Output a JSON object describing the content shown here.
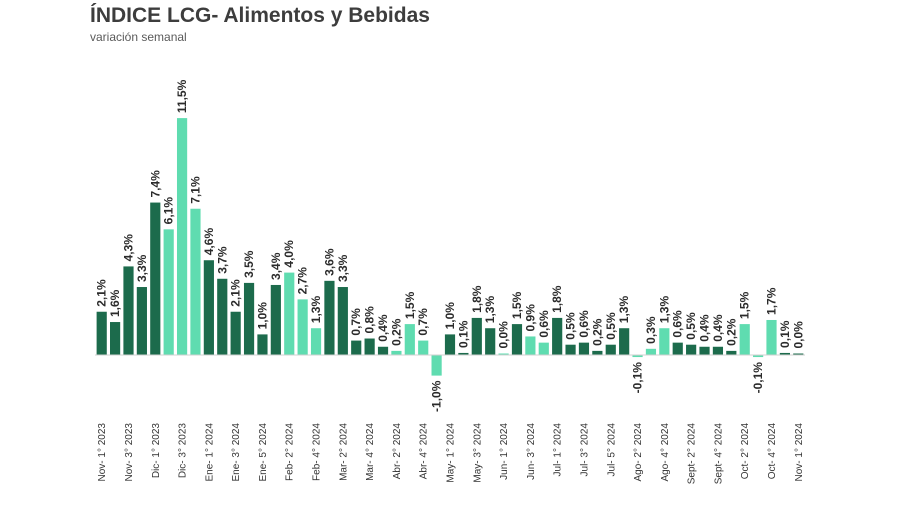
{
  "title": "ÍNDICE LCG- Alimentos y Bebidas",
  "subtitle": "variación semanal",
  "chart_data": {
    "type": "bar",
    "title": "ÍNDICE LCG- Alimentos y Bebidas",
    "subtitle": "variación semanal",
    "xlabel": "",
    "ylabel": "",
    "unit": "%",
    "ylim": [
      -1.0,
      11.5
    ],
    "grid": false,
    "legend": "none",
    "colors": {
      "dark": "#1c6b4c",
      "light": "#5fdcb0"
    },
    "values": [
      2.1,
      1.6,
      4.3,
      3.3,
      7.4,
      6.1,
      11.5,
      7.1,
      4.6,
      3.7,
      2.1,
      3.5,
      1.0,
      3.4,
      4.0,
      2.7,
      1.3,
      3.6,
      3.3,
      0.7,
      0.8,
      0.4,
      0.2,
      1.5,
      0.7,
      -1.0,
      1.0,
      0.1,
      1.8,
      1.3,
      0.0,
      1.5,
      0.9,
      0.6,
      1.8,
      0.5,
      0.6,
      0.2,
      0.5,
      1.3,
      -0.1,
      0.3,
      1.3,
      0.6,
      0.5,
      0.4,
      0.4,
      0.2,
      1.5,
      -0.1,
      1.7,
      0.1,
      0.0
    ],
    "labels": [
      "2,1%",
      "1,6%",
      "4,3%",
      "3,3%",
      "7,4%",
      "6,1%",
      "11,5%",
      "7,1%",
      "4,6%",
      "3,7%",
      "2,1%",
      "3,5%",
      "1,0%",
      "3,4%",
      "4,0%",
      "2,7%",
      "1,3%",
      "3,6%",
      "3,3%",
      "0,7%",
      "0,8%",
      "0,4%",
      "0,2%",
      "1,5%",
      "0,7%",
      "-1,0%",
      "1,0%",
      "0,1%",
      "1,8%",
      "1,3%",
      "0,0%",
      "1,5%",
      "0,9%",
      "0,6%",
      "1,8%",
      "0,5%",
      "0,6%",
      "0,2%",
      "0,5%",
      "1,3%",
      "-0,1%",
      "0,3%",
      "1,3%",
      "0,6%",
      "0,5%",
      "0,4%",
      "0,4%",
      "0,2%",
      "1,5%",
      "-0,1%",
      "1,7%",
      "0,1%",
      "0,0%"
    ],
    "shade": [
      "dark",
      "dark",
      "dark",
      "dark",
      "dark",
      "light",
      "light",
      "light",
      "dark",
      "dark",
      "dark",
      "dark",
      "dark",
      "dark",
      "light",
      "light",
      "light",
      "dark",
      "dark",
      "dark",
      "dark",
      "dark",
      "light",
      "light",
      "light",
      "light",
      "dark",
      "dark",
      "dark",
      "dark",
      "light",
      "dark",
      "light",
      "light",
      "dark",
      "dark",
      "dark",
      "dark",
      "dark",
      "dark",
      "light",
      "light",
      "light",
      "dark",
      "dark",
      "dark",
      "dark",
      "dark",
      "light",
      "light",
      "light",
      "dark",
      "dark"
    ],
    "tick_labels": [
      "Nov- 1° 2023",
      "Nov- 3° 2023",
      "Dic- 1° 2023",
      "Dic- 3° 2023",
      "Ene- 1° 2024",
      "Ene- 3° 2024",
      "Ene- 5° 2024",
      "Feb- 2° 2024",
      "Feb- 4° 2024",
      "Mar- 2° 2024",
      "Mar- 4° 2024",
      "Abr- 2° 2024",
      "Abr- 4° 2024",
      "May- 1° 2024",
      "May- 3° 2024",
      "Jun- 1° 2024",
      "Jun- 3° 2024",
      "Jul- 1° 2024",
      "Jul- 3° 2024",
      "Jul- 5° 2024",
      "Ago- 2° 2024",
      "Ago- 4° 2024",
      "Sept- 2° 2024",
      "Sept- 4° 2024",
      "Oct- 2° 2024",
      "Oct- 4° 2024",
      "Nov- 1° 2024"
    ],
    "tick_every": 2
  }
}
